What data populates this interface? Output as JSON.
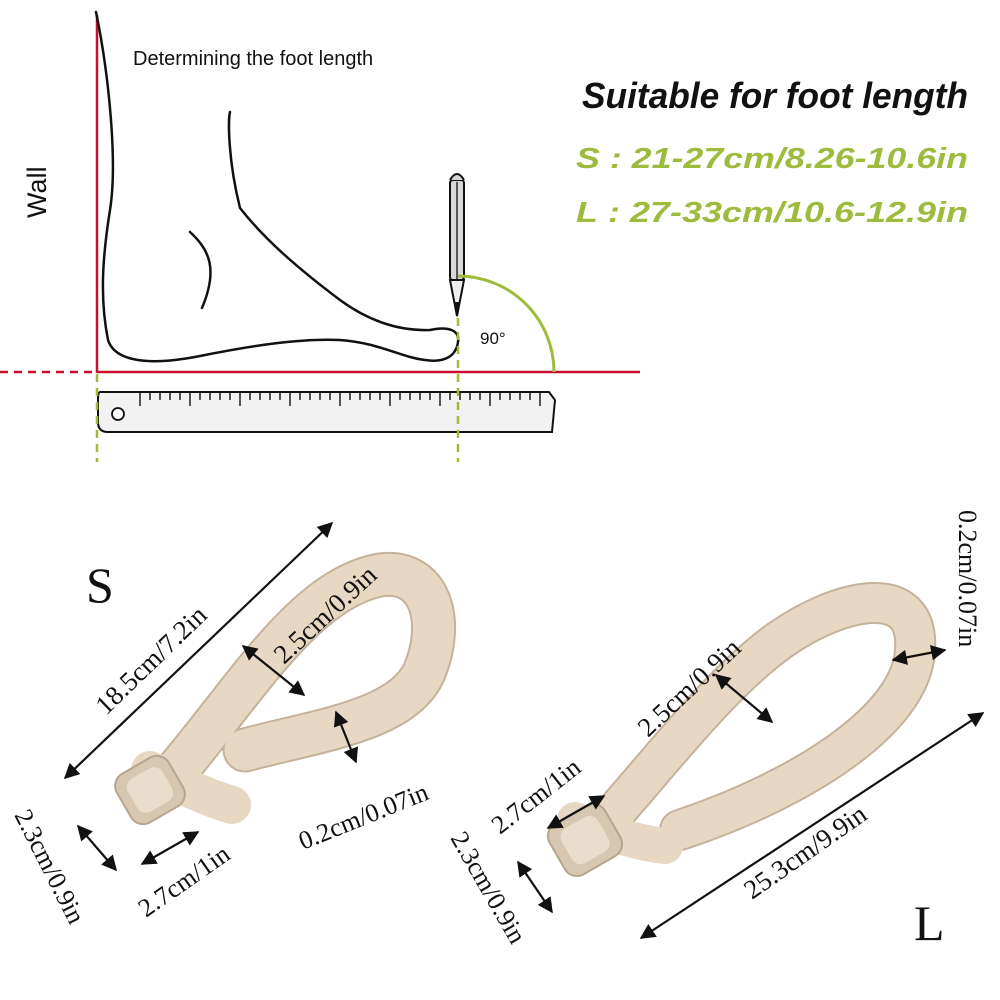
{
  "top": {
    "heading": "Determining the foot length",
    "wall_label": "Wall",
    "angle_label": "90°",
    "suitable_title": "Suitable for foot length",
    "size_s": "S : 21-27cm/8.26-10.6in",
    "size_l": "L : 27-33cm/10.6-12.9in"
  },
  "strap_s": {
    "size_letter": "S",
    "length": "18.5cm/7.2in",
    "band_width": "2.5cm/0.9in",
    "thickness": "0.2cm/0.07in",
    "ring_width": "2.7cm/1in",
    "ring_height": "2.3cm/0.9in"
  },
  "strap_l": {
    "size_letter": "L",
    "length": "25.3cm/9.9in",
    "band_width": "2.5cm/0.9in",
    "thickness": "0.2cm/0.07in",
    "ring_width": "2.7cm/1in",
    "ring_height": "2.3cm/0.9in"
  },
  "colors": {
    "wall_red": "#c8102e",
    "accent_green": "#9dbb3c",
    "strap_beige": "#e6d8c3",
    "text_dark": "#111111"
  }
}
